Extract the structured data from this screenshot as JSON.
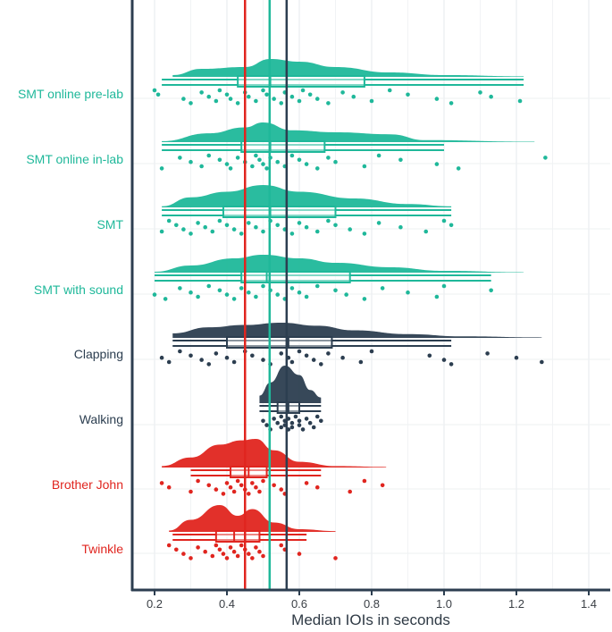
{
  "chart_data": {
    "type": "raincloud",
    "xlabel": "Median IOIs in seconds",
    "xlim": [
      0.15,
      1.45
    ],
    "x_ticks": [
      "0.2",
      "0.4",
      "0.6",
      "0.8",
      "1.0",
      "1.2",
      "1.4"
    ],
    "x_tick_values": [
      0.2,
      0.4,
      0.6,
      0.8,
      1.0,
      1.2,
      1.4
    ],
    "grid": true,
    "reference_lines": [
      {
        "x": 0.45,
        "color": "#e0251f"
      },
      {
        "x": 0.518,
        "color": "#1fb89a"
      },
      {
        "x": 0.565,
        "color": "#2c3e50"
      }
    ],
    "series": [
      {
        "name": "SMT online pre-lab",
        "color": "#1fb89a",
        "range": [
          0.2,
          1.22
        ],
        "box": {
          "q1": 0.43,
          "median": 0.52,
          "q3": 0.78
        },
        "whiskers": [
          0.22,
          1.22
        ],
        "density_peaks": [
          [
            0.25,
            0.1
          ],
          [
            0.33,
            0.45
          ],
          [
            0.45,
            0.55
          ],
          [
            0.52,
            1.0
          ],
          [
            0.6,
            0.85
          ],
          [
            0.7,
            0.55
          ],
          [
            0.85,
            0.25
          ],
          [
            1.0,
            0.1
          ],
          [
            1.22,
            0.03
          ]
        ],
        "points": [
          0.2,
          0.21,
          0.28,
          0.3,
          0.33,
          0.35,
          0.37,
          0.38,
          0.4,
          0.41,
          0.43,
          0.45,
          0.46,
          0.48,
          0.5,
          0.51,
          0.53,
          0.55,
          0.56,
          0.58,
          0.6,
          0.61,
          0.63,
          0.65,
          0.68,
          0.72,
          0.75,
          0.8,
          0.85,
          0.9,
          0.98,
          1.02,
          1.1,
          1.13,
          1.21
        ]
      },
      {
        "name": "SMT online in-lab",
        "color": "#1fb89a",
        "range": [
          0.22,
          1.28
        ],
        "box": {
          "q1": 0.44,
          "median": 0.52,
          "q3": 0.67
        },
        "whiskers": [
          0.22,
          1.0
        ],
        "density_peaks": [
          [
            0.22,
            0.05
          ],
          [
            0.35,
            0.45
          ],
          [
            0.45,
            0.75
          ],
          [
            0.5,
            1.0
          ],
          [
            0.58,
            0.6
          ],
          [
            0.7,
            0.5
          ],
          [
            0.85,
            0.4
          ],
          [
            0.95,
            0.1
          ],
          [
            1.25,
            0.02
          ]
        ],
        "points": [
          0.22,
          0.27,
          0.3,
          0.33,
          0.35,
          0.38,
          0.4,
          0.41,
          0.43,
          0.45,
          0.47,
          0.48,
          0.49,
          0.5,
          0.51,
          0.52,
          0.54,
          0.56,
          0.58,
          0.6,
          0.62,
          0.65,
          0.68,
          0.7,
          0.78,
          0.82,
          0.88,
          0.98,
          1.04,
          1.28
        ]
      },
      {
        "name": "SMT",
        "color": "#1fb89a",
        "range": [
          0.22,
          1.02
        ],
        "box": {
          "q1": 0.39,
          "median": 0.52,
          "q3": 0.7
        },
        "whiskers": [
          0.22,
          1.02
        ],
        "density_peaks": [
          [
            0.22,
            0.05
          ],
          [
            0.3,
            0.45
          ],
          [
            0.4,
            0.7
          ],
          [
            0.5,
            1.0
          ],
          [
            0.6,
            0.7
          ],
          [
            0.75,
            0.4
          ],
          [
            0.9,
            0.15
          ],
          [
            1.02,
            0.05
          ]
        ],
        "points": [
          0.22,
          0.24,
          0.26,
          0.28,
          0.3,
          0.32,
          0.34,
          0.36,
          0.38,
          0.4,
          0.42,
          0.44,
          0.46,
          0.48,
          0.5,
          0.52,
          0.54,
          0.56,
          0.58,
          0.6,
          0.62,
          0.65,
          0.68,
          0.7,
          0.74,
          0.78,
          0.82,
          0.88,
          0.95,
          1.0,
          1.02
        ]
      },
      {
        "name": "SMT with sound",
        "color": "#1fb89a",
        "range": [
          0.2,
          1.22
        ],
        "box": {
          "q1": 0.44,
          "median": 0.51,
          "q3": 0.74
        },
        "whiskers": [
          0.2,
          1.13
        ],
        "density_peaks": [
          [
            0.2,
            0.05
          ],
          [
            0.3,
            0.4
          ],
          [
            0.42,
            0.8
          ],
          [
            0.5,
            1.0
          ],
          [
            0.6,
            0.8
          ],
          [
            0.7,
            0.55
          ],
          [
            0.85,
            0.3
          ],
          [
            1.0,
            0.1
          ],
          [
            1.22,
            0.02
          ]
        ],
        "points": [
          0.2,
          0.23,
          0.27,
          0.3,
          0.32,
          0.35,
          0.38,
          0.4,
          0.42,
          0.44,
          0.46,
          0.48,
          0.5,
          0.52,
          0.54,
          0.56,
          0.58,
          0.6,
          0.62,
          0.65,
          0.7,
          0.73,
          0.78,
          0.83,
          0.9,
          0.98,
          1.0,
          1.13
        ]
      },
      {
        "name": "Clapping",
        "color": "#2c3e50",
        "range": [
          0.25,
          1.27
        ],
        "box": {
          "q1": 0.4,
          "median": 0.57,
          "q3": 0.69
        },
        "whiskers": [
          0.25,
          1.02
        ],
        "density_peaks": [
          [
            0.25,
            0.3
          ],
          [
            0.35,
            0.7
          ],
          [
            0.45,
            0.85
          ],
          [
            0.55,
            1.0
          ],
          [
            0.65,
            0.8
          ],
          [
            0.75,
            0.5
          ],
          [
            0.9,
            0.25
          ],
          [
            1.05,
            0.1
          ],
          [
            1.27,
            0.03
          ]
        ],
        "points": [
          0.22,
          0.24,
          0.27,
          0.3,
          0.33,
          0.35,
          0.37,
          0.4,
          0.42,
          0.45,
          0.47,
          0.5,
          0.52,
          0.55,
          0.57,
          0.58,
          0.6,
          0.62,
          0.64,
          0.66,
          0.68,
          0.72,
          0.77,
          0.8,
          0.96,
          1.0,
          1.02,
          1.12,
          1.2,
          1.27
        ]
      },
      {
        "name": "Walking",
        "color": "#2c3e50",
        "range": [
          0.49,
          0.66
        ],
        "box": {
          "q1": 0.54,
          "median": 0.57,
          "q3": 0.6
        },
        "whiskers": [
          0.49,
          0.66
        ],
        "density_peaks": [
          [
            0.49,
            0.2
          ],
          [
            0.52,
            0.55
          ],
          [
            0.56,
            1.0
          ],
          [
            0.6,
            0.75
          ],
          [
            0.63,
            0.35
          ],
          [
            0.66,
            0.15
          ]
        ],
        "points": [
          0.5,
          0.51,
          0.52,
          0.53,
          0.54,
          0.55,
          0.55,
          0.56,
          0.56,
          0.57,
          0.57,
          0.58,
          0.58,
          0.59,
          0.6,
          0.6,
          0.61,
          0.62,
          0.63,
          0.64,
          0.65,
          0.66
        ]
      },
      {
        "name": "Brother John",
        "color": "#e0251f",
        "range": [
          0.22,
          0.84
        ],
        "box": {
          "q1": 0.41,
          "median": 0.46,
          "q3": 0.51
        },
        "whiskers": [
          0.3,
          0.66
        ],
        "density_peaks": [
          [
            0.22,
            0.05
          ],
          [
            0.3,
            0.35
          ],
          [
            0.38,
            0.8
          ],
          [
            0.44,
            0.95
          ],
          [
            0.48,
            1.0
          ],
          [
            0.53,
            0.6
          ],
          [
            0.6,
            0.2
          ],
          [
            0.7,
            0.05
          ],
          [
            0.84,
            0.02
          ]
        ],
        "points": [
          0.22,
          0.24,
          0.3,
          0.32,
          0.35,
          0.37,
          0.39,
          0.4,
          0.41,
          0.42,
          0.43,
          0.44,
          0.45,
          0.46,
          0.47,
          0.48,
          0.49,
          0.5,
          0.53,
          0.55,
          0.56,
          0.62,
          0.65,
          0.74,
          0.78,
          0.83
        ]
      },
      {
        "name": "Twinkle",
        "color": "#e0251f",
        "range": [
          0.24,
          0.7
        ],
        "box": {
          "q1": 0.37,
          "median": 0.42,
          "q3": 0.49
        },
        "whiskers": [
          0.25,
          0.62
        ],
        "density_peaks": [
          [
            0.24,
            0.05
          ],
          [
            0.3,
            0.45
          ],
          [
            0.38,
            1.0
          ],
          [
            0.43,
            0.6
          ],
          [
            0.47,
            0.85
          ],
          [
            0.53,
            0.35
          ],
          [
            0.6,
            0.1
          ],
          [
            0.7,
            0.03
          ]
        ],
        "points": [
          0.24,
          0.26,
          0.28,
          0.3,
          0.32,
          0.34,
          0.36,
          0.37,
          0.38,
          0.39,
          0.4,
          0.41,
          0.42,
          0.43,
          0.44,
          0.45,
          0.46,
          0.47,
          0.48,
          0.49,
          0.5,
          0.55,
          0.56,
          0.6,
          0.7
        ]
      }
    ]
  }
}
